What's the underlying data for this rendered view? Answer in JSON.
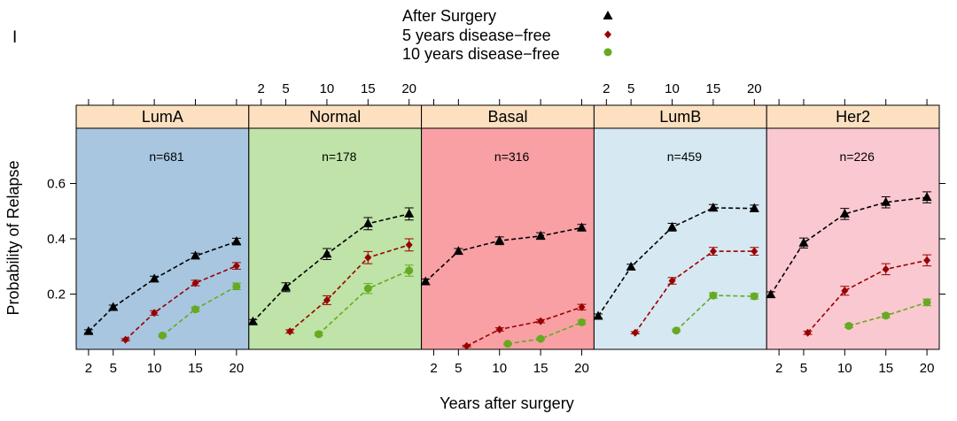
{
  "panel_letter": "I",
  "chart_data": {
    "type": "line",
    "xlabel": "Years after surgery",
    "ylabel": "Probability of Relapse",
    "xlim": [
      0.5,
      21.5
    ],
    "ylim": [
      0.0,
      0.8
    ],
    "x_ticks": [
      2,
      5,
      10,
      15,
      20
    ],
    "y_ticks": [
      0.2,
      0.4,
      0.6
    ],
    "grid": false,
    "legend_position": "top-center",
    "legend": [
      {
        "label": "After Surgery",
        "color": "#000000",
        "marker": "triangle"
      },
      {
        "label": "5 years disease−free",
        "color": "#990000",
        "marker": "diamond"
      },
      {
        "label": "10 years disease−free",
        "color": "#66aa22",
        "marker": "circle"
      }
    ],
    "panels": [
      {
        "name": "LumA",
        "n_label": "n=681",
        "bg": "#a8c6e0",
        "series": [
          {
            "name": "After Surgery",
            "x": [
              2,
              5,
              10,
              15,
              20
            ],
            "y": [
              0.065,
              0.152,
              0.255,
              0.338,
              0.39
            ],
            "err": [
              0.006,
              0.008,
              0.01,
              0.01,
              0.012
            ]
          },
          {
            "name": "5 years disease−free",
            "x": [
              6.5,
              10,
              15,
              20
            ],
            "y": [
              0.035,
              0.132,
              0.24,
              0.302
            ],
            "err": [
              0.004,
              0.008,
              0.01,
              0.012
            ]
          },
          {
            "name": "10 years disease−free",
            "x": [
              11,
              15,
              20
            ],
            "y": [
              0.05,
              0.145,
              0.228
            ],
            "err": [
              0.004,
              0.008,
              0.012
            ]
          }
        ]
      },
      {
        "name": "Normal",
        "n_label": "n=178",
        "bg": "#bfe3a8",
        "series": [
          {
            "name": "After Surgery",
            "x": [
              1,
              5,
              10,
              15,
              20
            ],
            "y": [
              0.1,
              0.225,
              0.345,
              0.455,
              0.49
            ],
            "err": [
              0.008,
              0.016,
              0.02,
              0.022,
              0.022
            ]
          },
          {
            "name": "5 years disease−free",
            "x": [
              5.5,
              10,
              15,
              20
            ],
            "y": [
              0.065,
              0.178,
              0.332,
              0.378
            ],
            "err": [
              0.006,
              0.016,
              0.022,
              0.022
            ]
          },
          {
            "name": "10 years disease−free",
            "x": [
              9,
              15,
              20
            ],
            "y": [
              0.055,
              0.22,
              0.285
            ],
            "err": [
              0.006,
              0.018,
              0.02
            ]
          }
        ]
      },
      {
        "name": "Basal",
        "n_label": "n=316",
        "bg": "#f8a0a4",
        "series": [
          {
            "name": "After Surgery",
            "x": [
              1,
              5,
              10,
              15,
              20
            ],
            "y": [
              0.245,
              0.355,
              0.393,
              0.41,
              0.44
            ],
            "err": [
              0.01,
              0.01,
              0.014,
              0.012,
              0.012
            ]
          },
          {
            "name": "5 years disease−free",
            "x": [
              6,
              10,
              15,
              20
            ],
            "y": [
              0.012,
              0.072,
              0.102,
              0.153
            ],
            "err": [
              0.003,
              0.006,
              0.006,
              0.01
            ]
          },
          {
            "name": "10 years disease−free",
            "x": [
              11,
              15,
              20
            ],
            "y": [
              0.02,
              0.038,
              0.098
            ],
            "err": [
              0.003,
              0.004,
              0.008
            ]
          }
        ]
      },
      {
        "name": "LumB",
        "n_label": "n=459",
        "bg": "#d6e8f2",
        "series": [
          {
            "name": "After Surgery",
            "x": [
              1,
              5,
              10,
              15,
              20
            ],
            "y": [
              0.12,
              0.298,
              0.442,
              0.512,
              0.51
            ],
            "err": [
              0.008,
              0.01,
              0.014,
              0.012,
              0.012
            ]
          },
          {
            "name": "5 years disease−free",
            "x": [
              5.5,
              10,
              15,
              20
            ],
            "y": [
              0.06,
              0.248,
              0.355,
              0.355
            ],
            "err": [
              0.004,
              0.012,
              0.014,
              0.014
            ]
          },
          {
            "name": "10 years disease−free",
            "x": [
              10.5,
              15,
              20
            ],
            "y": [
              0.068,
              0.195,
              0.192
            ],
            "err": [
              0.004,
              0.01,
              0.01
            ]
          }
        ]
      },
      {
        "name": "Her2",
        "n_label": "n=226",
        "bg": "#fac8d0",
        "series": [
          {
            "name": "After Surgery",
            "x": [
              1,
              5,
              10,
              15,
              20
            ],
            "y": [
              0.198,
              0.385,
              0.49,
              0.532,
              0.55
            ],
            "err": [
              0.01,
              0.018,
              0.02,
              0.02,
              0.02
            ]
          },
          {
            "name": "5 years disease−free",
            "x": [
              5.5,
              10,
              15,
              20
            ],
            "y": [
              0.06,
              0.212,
              0.29,
              0.322
            ],
            "err": [
              0.006,
              0.016,
              0.02,
              0.02
            ]
          },
          {
            "name": "10 years disease−free",
            "x": [
              10.5,
              15,
              20
            ],
            "y": [
              0.085,
              0.122,
              0.17
            ],
            "err": [
              0.006,
              0.008,
              0.012
            ]
          }
        ]
      }
    ]
  }
}
